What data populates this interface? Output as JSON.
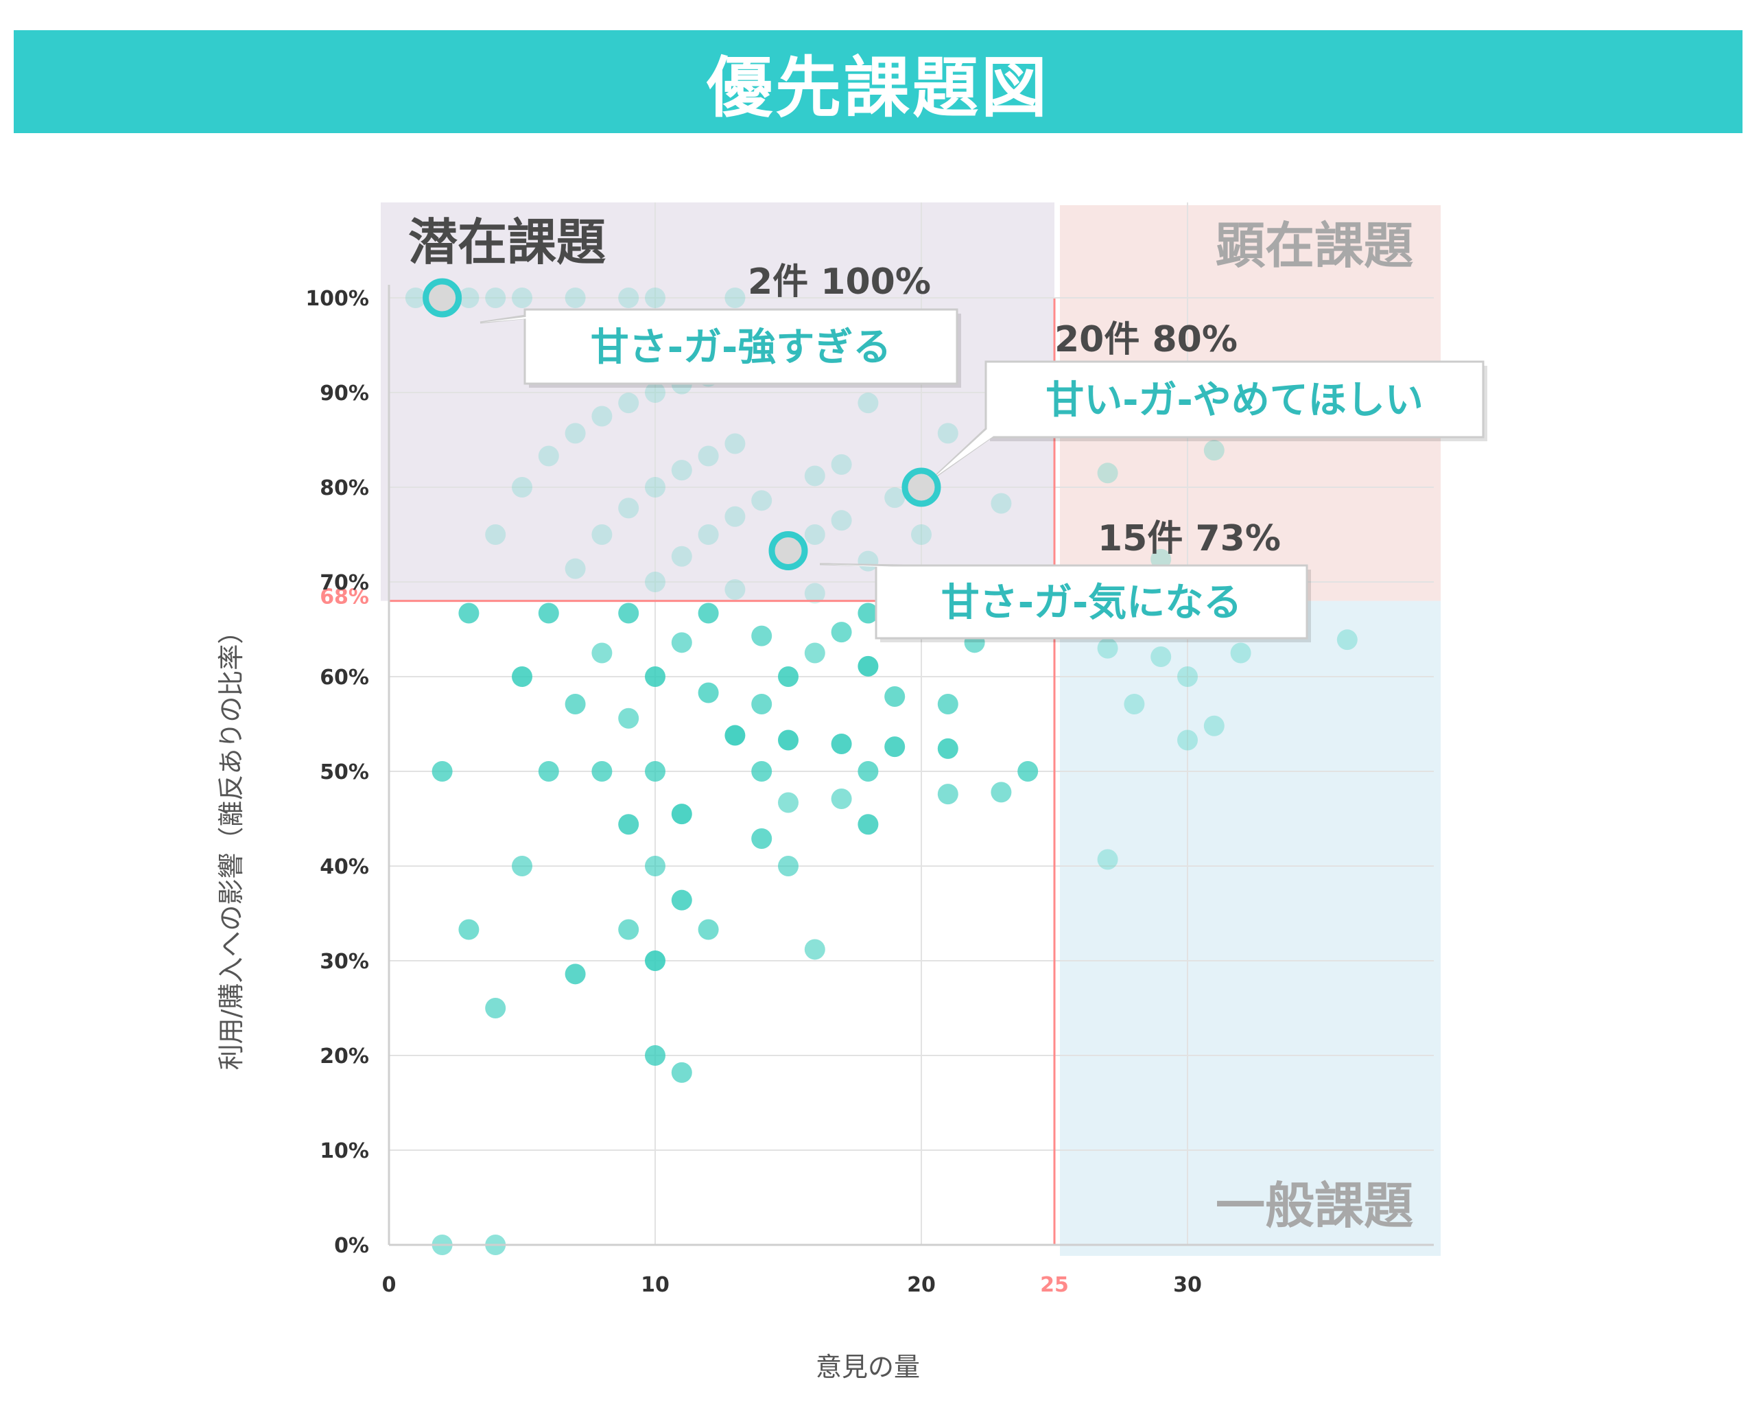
{
  "header": {
    "title": "優先課題図"
  },
  "colors": {
    "banner": "#33cccc",
    "point": "#33ccbb",
    "threshold": "#ff8a8a",
    "latent_bg": "#ece8f0",
    "manifest_bg": "#f8e6e4",
    "general_bg": "#e4f2f8",
    "callout_text": "#33bbbb"
  },
  "chart_data": {
    "type": "scatter",
    "title": "",
    "xlabel": "意見の量",
    "ylabel": "利用/購入への影響（離反ありの比率）",
    "xlim": [
      0,
      40
    ],
    "ylim": [
      0,
      1.0
    ],
    "xticks": [
      "0",
      "10",
      "20",
      "25",
      "30"
    ],
    "xtick_values": [
      0,
      10,
      20,
      25,
      30
    ],
    "yticks": [
      "0%",
      "10%",
      "20%",
      "30%",
      "40%",
      "50%",
      "60%",
      "68%",
      "70%",
      "80%",
      "90%",
      "100%"
    ],
    "ytick_values": [
      0,
      0.1,
      0.2,
      0.3,
      0.4,
      0.5,
      0.6,
      0.68,
      0.7,
      0.8,
      0.9,
      1.0
    ],
    "thresholds": {
      "x": 25,
      "y": 0.68
    },
    "quadrants": {
      "latent": "潜在課題",
      "manifest": "顕在課題",
      "general": "一般課題"
    },
    "points_upper": [
      [
        1,
        1.0
      ],
      [
        2,
        1.0
      ],
      [
        3,
        1.0
      ],
      [
        4,
        1.0
      ],
      [
        5,
        1.0
      ],
      [
        7,
        1.0
      ],
      [
        9,
        1.0
      ],
      [
        10,
        1.0
      ],
      [
        13,
        1.0
      ],
      [
        4,
        0.75
      ],
      [
        5,
        0.8
      ],
      [
        6,
        0.833
      ],
      [
        7,
        0.857
      ],
      [
        7,
        0.714
      ],
      [
        8,
        0.875
      ],
      [
        8,
        0.75
      ],
      [
        9,
        0.889
      ],
      [
        9,
        0.778
      ],
      [
        10,
        0.9
      ],
      [
        10,
        0.8
      ],
      [
        10,
        0.7
      ],
      [
        11,
        0.909
      ],
      [
        11,
        0.818
      ],
      [
        11,
        0.727
      ],
      [
        12,
        0.917
      ],
      [
        12,
        0.833
      ],
      [
        12,
        0.75
      ],
      [
        13,
        0.846
      ],
      [
        13,
        0.769
      ],
      [
        13,
        0.692
      ],
      [
        14,
        0.786
      ],
      [
        15,
        0.733
      ],
      [
        16,
        0.812
      ],
      [
        16,
        0.75
      ],
      [
        16,
        0.688
      ],
      [
        17,
        0.824
      ],
      [
        17,
        0.765
      ],
      [
        18,
        0.889
      ],
      [
        18,
        0.722
      ],
      [
        19,
        0.789
      ],
      [
        20,
        0.8
      ],
      [
        20,
        0.75
      ],
      [
        21,
        0.857
      ],
      [
        23,
        0.783
      ],
      [
        27,
        0.815
      ],
      [
        29,
        0.724
      ],
      [
        31,
        0.839
      ]
    ],
    "points_lower": [
      [
        2,
        0.0
      ],
      [
        4,
        0.0
      ],
      [
        4,
        0.25
      ],
      [
        3,
        0.333
      ],
      [
        2,
        0.5
      ],
      [
        3,
        0.667
      ],
      [
        5,
        0.4
      ],
      [
        5,
        0.6
      ],
      [
        6,
        0.5
      ],
      [
        6,
        0.667
      ],
      [
        7,
        0.286
      ],
      [
        7,
        0.571
      ],
      [
        8,
        0.5
      ],
      [
        8,
        0.625
      ],
      [
        9,
        0.333
      ],
      [
        9,
        0.444
      ],
      [
        9,
        0.556
      ],
      [
        9,
        0.667
      ],
      [
        10,
        0.2
      ],
      [
        10,
        0.3
      ],
      [
        10,
        0.4
      ],
      [
        10,
        0.5
      ],
      [
        10,
        0.6
      ],
      [
        11,
        0.182
      ],
      [
        11,
        0.364
      ],
      [
        11,
        0.455
      ],
      [
        11,
        0.636
      ],
      [
        12,
        0.333
      ],
      [
        12,
        0.583
      ],
      [
        12,
        0.667
      ],
      [
        13,
        0.538
      ],
      [
        14,
        0.429
      ],
      [
        14,
        0.5
      ],
      [
        14,
        0.571
      ],
      [
        14,
        0.643
      ],
      [
        15,
        0.4
      ],
      [
        15,
        0.467
      ],
      [
        15,
        0.533
      ],
      [
        15,
        0.6
      ],
      [
        16,
        0.312
      ],
      [
        16,
        0.625
      ],
      [
        17,
        0.471
      ],
      [
        17,
        0.529
      ],
      [
        17,
        0.647
      ],
      [
        18,
        0.444
      ],
      [
        18,
        0.5
      ],
      [
        18,
        0.611
      ],
      [
        18,
        0.667
      ],
      [
        19,
        0.526
      ],
      [
        19,
        0.579
      ],
      [
        21,
        0.476
      ],
      [
        21,
        0.524
      ],
      [
        21,
        0.571
      ],
      [
        22,
        0.636
      ],
      [
        23,
        0.478
      ],
      [
        24,
        0.5
      ],
      [
        27,
        0.407
      ],
      [
        27,
        0.63
      ],
      [
        28,
        0.571
      ],
      [
        29,
        0.621
      ],
      [
        30,
        0.533
      ],
      [
        30,
        0.6
      ],
      [
        31,
        0.548
      ],
      [
        32,
        0.625
      ],
      [
        36,
        0.639
      ]
    ],
    "highlights": [
      {
        "x": 2,
        "y": 1.0,
        "label": "甘さ-ガ-強すぎる",
        "annotation": "2件 100%"
      },
      {
        "x": 20,
        "y": 0.8,
        "label": "甘い-ガ-やめてほしい",
        "annotation": "20件 80%"
      },
      {
        "x": 15,
        "y": 0.733,
        "label": "甘さ-ガ-気になる",
        "annotation": "15件 73%"
      }
    ]
  }
}
